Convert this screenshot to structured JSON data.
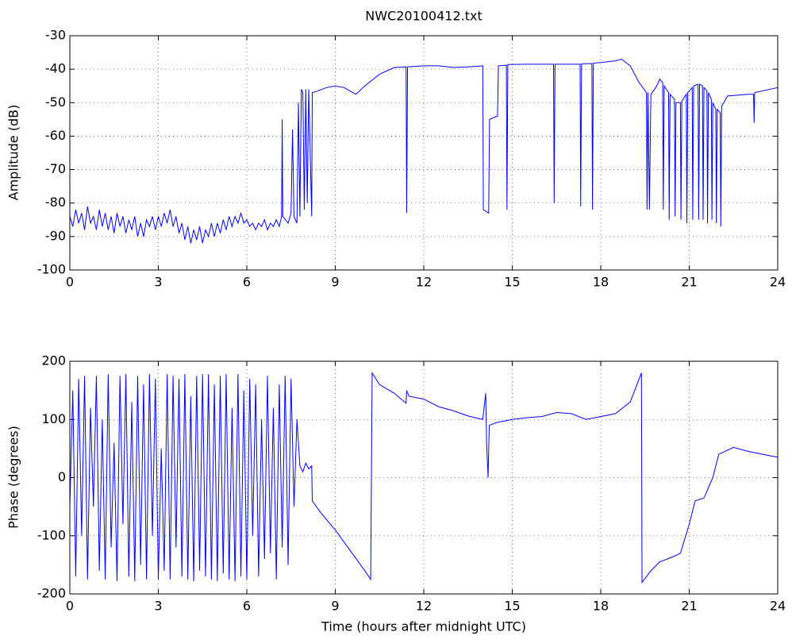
{
  "chart_data": [
    {
      "type": "line",
      "title": "NWC20100412.txt",
      "ylabel": "Amplitude (dB)",
      "color": "#0000ff",
      "grid": true,
      "xlim": [
        0,
        24
      ],
      "xticks": [
        0,
        3,
        6,
        9,
        12,
        15,
        18,
        21,
        24
      ],
      "ylim": [
        -100,
        -30
      ],
      "yticks": [
        -100,
        -90,
        -80,
        -70,
        -60,
        -50,
        -40,
        -30
      ],
      "x": [
        0,
        0.1,
        0.2,
        0.3,
        0.4,
        0.5,
        0.6,
        0.7,
        0.8,
        0.9,
        1.0,
        1.1,
        1.2,
        1.3,
        1.4,
        1.5,
        1.6,
        1.7,
        1.8,
        1.9,
        2.0,
        2.1,
        2.2,
        2.3,
        2.4,
        2.5,
        2.6,
        2.7,
        2.8,
        2.9,
        3.0,
        3.1,
        3.2,
        3.3,
        3.4,
        3.5,
        3.6,
        3.7,
        3.8,
        3.9,
        4.0,
        4.1,
        4.2,
        4.3,
        4.4,
        4.5,
        4.6,
        4.7,
        4.8,
        4.9,
        5.0,
        5.1,
        5.2,
        5.3,
        5.4,
        5.5,
        5.6,
        5.7,
        5.8,
        5.9,
        6.0,
        6.1,
        6.2,
        6.3,
        6.4,
        6.5,
        6.6,
        6.7,
        6.8,
        6.9,
        7.0,
        7.1,
        7.18,
        7.2,
        7.22,
        7.4,
        7.5,
        7.55,
        7.6,
        7.7,
        7.75,
        7.8,
        7.85,
        7.9,
        7.95,
        8.0,
        8.05,
        8.1,
        8.2,
        8.22,
        8.4,
        8.7,
        9.0,
        9.3,
        9.7,
        10.0,
        10.5,
        11.0,
        11.4,
        11.42,
        11.45,
        12.0,
        12.5,
        13.0,
        13.5,
        14.0,
        14.02,
        14.2,
        14.23,
        14.5,
        14.53,
        14.8,
        14.82,
        14.85,
        15.5,
        16.0,
        16.4,
        16.42,
        16.45,
        17.0,
        17.3,
        17.32,
        17.35,
        17.7,
        17.72,
        17.75,
        18.0,
        18.5,
        18.7,
        19.0,
        19.3,
        19.55,
        19.57,
        19.6,
        19.65,
        19.7,
        19.9,
        20.0,
        20.1,
        20.12,
        20.15,
        20.3,
        20.32,
        20.35,
        20.5,
        20.52,
        20.55,
        20.7,
        20.72,
        20.75,
        20.9,
        20.92,
        20.95,
        21.1,
        21.12,
        21.15,
        21.3,
        21.32,
        21.35,
        21.45,
        21.47,
        21.5,
        21.6,
        21.62,
        21.65,
        21.75,
        21.77,
        21.8,
        21.9,
        21.92,
        21.95,
        22.05,
        22.07,
        22.1,
        22.3,
        23.0,
        23.18,
        23.2,
        23.22,
        24
      ],
      "values": [
        -84,
        -87,
        -82,
        -86,
        -83,
        -88,
        -81,
        -86,
        -84,
        -88,
        -82,
        -87,
        -83,
        -88,
        -84,
        -89,
        -83,
        -87,
        -84,
        -89,
        -85,
        -88,
        -84,
        -90,
        -86,
        -90,
        -85,
        -87,
        -84,
        -88,
        -84,
        -87,
        -83,
        -86,
        -82,
        -87,
        -84,
        -89,
        -86,
        -91,
        -87,
        -92,
        -88,
        -91,
        -87,
        -92,
        -88,
        -90,
        -86,
        -90,
        -86,
        -89,
        -85,
        -88,
        -84,
        -87,
        -84,
        -86,
        -83,
        -86,
        -85,
        -87,
        -86,
        -88,
        -86,
        -87,
        -85,
        -88,
        -86,
        -87,
        -85,
        -87,
        -84,
        -55,
        -84,
        -86,
        -83,
        -58,
        -84,
        -86,
        -50,
        -84,
        -46,
        -47,
        -82,
        -46,
        -80,
        -46,
        -84,
        -47,
        -46.5,
        -45.5,
        -45,
        -45.5,
        -47.5,
        -45,
        -41.5,
        -39.5,
        -39.3,
        -83,
        -39.3,
        -39,
        -39,
        -39.5,
        -39.3,
        -39,
        -82,
        -83,
        -55,
        -54,
        -39,
        -38.8,
        -82,
        -38.6,
        -38.5,
        -38.5,
        -38.5,
        -80,
        -38.5,
        -38.5,
        -38.5,
        -81,
        -38.4,
        -38.3,
        -82,
        -38.2,
        -38,
        -37.5,
        -37,
        -39,
        -44,
        -47,
        -82,
        -47,
        -82,
        -47.5,
        -45,
        -43,
        -44,
        -82,
        -45,
        -47,
        -85,
        -47.5,
        -49,
        -84,
        -50,
        -50,
        -85,
        -49.5,
        -47.5,
        -86,
        -47,
        -45.5,
        -85,
        -45,
        -44.5,
        -85,
        -44.5,
        -45,
        -85,
        -45.5,
        -46.5,
        -86,
        -47,
        -49,
        -85,
        -50,
        -52,
        -86,
        -52,
        -53,
        -87,
        -51,
        -48,
        -47.5,
        -47.5,
        -56,
        -47,
        -45.5
      ]
    },
    {
      "type": "line",
      "ylabel": "Phase (degrees)",
      "xlabel": "Time (hours after midnight UTC)",
      "color": "#0000ff",
      "grid": true,
      "xlim": [
        0,
        24
      ],
      "xticks": [
        0,
        3,
        6,
        9,
        12,
        15,
        18,
        21,
        24
      ],
      "ylim": [
        -200,
        200
      ],
      "yticks": [
        -200,
        -100,
        0,
        100,
        200
      ],
      "x": [
        0,
        0.1,
        0.2,
        0.3,
        0.4,
        0.5,
        0.6,
        0.7,
        0.8,
        0.9,
        1.0,
        1.1,
        1.2,
        1.3,
        1.4,
        1.5,
        1.6,
        1.7,
        1.8,
        1.9,
        2.0,
        2.1,
        2.2,
        2.3,
        2.4,
        2.5,
        2.6,
        2.7,
        2.8,
        2.9,
        3.0,
        3.1,
        3.2,
        3.3,
        3.4,
        3.5,
        3.6,
        3.7,
        3.8,
        3.9,
        4.0,
        4.1,
        4.2,
        4.3,
        4.4,
        4.5,
        4.6,
        4.7,
        4.8,
        4.9,
        5.0,
        5.1,
        5.2,
        5.3,
        5.4,
        5.5,
        5.6,
        5.7,
        5.8,
        5.9,
        6.0,
        6.1,
        6.2,
        6.3,
        6.4,
        6.5,
        6.6,
        6.7,
        6.8,
        6.9,
        7.0,
        7.1,
        7.2,
        7.3,
        7.4,
        7.5,
        7.6,
        7.7,
        7.8,
        7.9,
        8.0,
        8.1,
        8.2,
        8.22,
        8.5,
        9.0,
        9.5,
        10.0,
        10.2,
        10.25,
        10.5,
        11.0,
        11.4,
        11.42,
        11.5,
        12.0,
        12.5,
        13.0,
        13.5,
        14.0,
        14.1,
        14.13,
        14.18,
        14.22,
        14.5,
        15.0,
        15.5,
        16.0,
        16.5,
        17.0,
        17.5,
        18.0,
        18.5,
        19.0,
        19.38,
        19.4,
        19.7,
        20.0,
        20.5,
        20.7,
        21.0,
        21.2,
        21.5,
        21.8,
        22.0,
        22.5,
        23.0,
        24
      ],
      "values": [
        -50,
        150,
        -170,
        170,
        -100,
        175,
        -175,
        120,
        -50,
        175,
        -160,
        100,
        -175,
        178,
        -120,
        60,
        -178,
        175,
        -80,
        178,
        -170,
        130,
        -178,
        175,
        -150,
        160,
        -175,
        178,
        -100,
        170,
        -175,
        50,
        -160,
        178,
        -175,
        175,
        -120,
        170,
        -170,
        178,
        -175,
        140,
        -178,
        175,
        -160,
        178,
        -170,
        178,
        -175,
        160,
        -178,
        175,
        -165,
        178,
        -175,
        120,
        -178,
        178,
        -170,
        150,
        -175,
        170,
        -100,
        160,
        -170,
        100,
        -140,
        175,
        -130,
        120,
        -175,
        160,
        -120,
        175,
        -150,
        170,
        -50,
        100,
        20,
        10,
        25,
        15,
        20,
        -40,
        -60,
        -90,
        -125,
        -160,
        -175,
        180,
        160,
        145,
        128,
        150,
        140,
        135,
        122,
        115,
        106,
        100,
        145,
        60,
        0,
        90,
        95,
        100,
        103,
        105,
        112,
        110,
        100,
        105,
        110,
        130,
        180,
        -180,
        -160,
        -145,
        -135,
        -130,
        -80,
        -40,
        -35,
        0,
        40,
        52,
        45,
        35
      ]
    }
  ]
}
